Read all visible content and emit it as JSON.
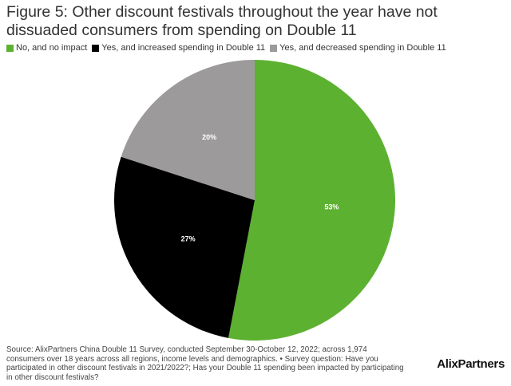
{
  "title": "Figure 5: Other discount festivals throughout the year have not dissuaded consumers from spending on Double 11",
  "chart_data": {
    "type": "pie",
    "title": "Figure 5: Other discount festivals throughout the year have not dissuaded consumers from spending on Double 11",
    "legend_position": "top-left",
    "series": [
      {
        "name": "No, and no impact",
        "value": 53,
        "label": "53%",
        "color": "#5db131",
        "label_color": "#ffffff"
      },
      {
        "name": "Yes, and increased spending in Double 11",
        "value": 27,
        "label": "27%",
        "color": "#000000",
        "label_color": "#ffffff"
      },
      {
        "name": "Yes, and decreased spending in Double 11",
        "value": 20,
        "label": "20%",
        "color": "#9c9a9b",
        "label_color": "#ffffff"
      }
    ]
  },
  "source": "Source: AlixPartners China Double 11 Survey, conducted September 30-October 12, 2022; across 1,974 consumers over 18 years across all regions, income levels and demographics. • Survey question: Have you participated in other discount festivals in 2021/2022?; Has your Double 11 spending been impacted by participating in other discount festivals?",
  "logo_text": "AlixPartners"
}
